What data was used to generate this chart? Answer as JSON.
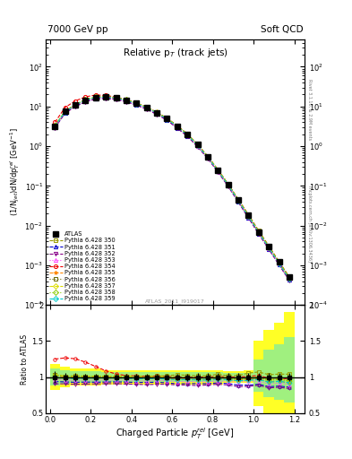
{
  "title_left": "7000 GeV pp",
  "title_right": "Soft QCD",
  "plot_title": "Relative p$_{T}$ (track jets)",
  "xlabel": "Charged Particle $p^{rel}_{T}$ [GeV]",
  "ylabel_top": "(1/N$_{jet}$)dN/dp$^{rel}_{T}$ [GeV$^{-1}$]",
  "ylabel_bottom": "Ratio to ATLAS",
  "right_label_top": "Rivet 3.1.10, ≥ 2.9M events",
  "right_label_bottom": "mcplots.cern.ch [arXiv:1306.3436]",
  "watermark": "ATLAS_2011_I919017",
  "x_data": [
    0.025,
    0.075,
    0.125,
    0.175,
    0.225,
    0.275,
    0.325,
    0.375,
    0.425,
    0.475,
    0.525,
    0.575,
    0.625,
    0.675,
    0.725,
    0.775,
    0.825,
    0.875,
    0.925,
    0.975,
    1.025,
    1.075,
    1.125,
    1.175
  ],
  "atlas_y": [
    3.2,
    7.5,
    11.0,
    14.5,
    17.0,
    17.5,
    16.5,
    14.5,
    12.0,
    9.5,
    7.0,
    5.0,
    3.2,
    2.0,
    1.1,
    0.55,
    0.25,
    0.11,
    0.045,
    0.018,
    0.007,
    0.003,
    0.0012,
    0.0005
  ],
  "atlas_yerr": [
    0.25,
    0.4,
    0.6,
    0.7,
    0.8,
    0.8,
    0.75,
    0.65,
    0.55,
    0.4,
    0.3,
    0.22,
    0.15,
    0.1,
    0.06,
    0.03,
    0.014,
    0.006,
    0.0025,
    0.001,
    0.0004,
    0.00018,
    7e-05,
    3e-05
  ],
  "pythia_350_y": [
    3.3,
    7.6,
    11.2,
    14.7,
    17.2,
    17.7,
    16.7,
    14.7,
    12.1,
    9.6,
    7.1,
    5.1,
    3.3,
    2.05,
    1.12,
    0.56,
    0.26,
    0.112,
    0.046,
    0.019,
    0.0075,
    0.0031,
    0.00125,
    0.00052
  ],
  "pythia_351_y": [
    3.0,
    7.0,
    10.2,
    13.5,
    15.8,
    16.3,
    15.4,
    13.5,
    11.1,
    8.8,
    6.5,
    4.6,
    2.9,
    1.82,
    1.0,
    0.5,
    0.23,
    0.1,
    0.04,
    0.016,
    0.0063,
    0.0026,
    0.00105,
    0.00043
  ],
  "pythia_352_y": [
    2.9,
    6.8,
    9.9,
    13.1,
    15.4,
    15.9,
    15.0,
    13.1,
    10.8,
    8.5,
    6.3,
    4.5,
    2.85,
    1.78,
    0.97,
    0.49,
    0.225,
    0.098,
    0.039,
    0.0157,
    0.0062,
    0.00255,
    0.00103,
    0.00042
  ],
  "pythia_353_y": [
    3.1,
    7.2,
    10.5,
    13.9,
    16.3,
    16.8,
    15.8,
    13.9,
    11.4,
    9.0,
    6.7,
    4.75,
    3.0,
    1.88,
    1.03,
    0.515,
    0.237,
    0.103,
    0.042,
    0.017,
    0.0066,
    0.00272,
    0.0011,
    0.00045
  ],
  "pythia_354_y": [
    4.0,
    9.5,
    13.8,
    17.5,
    19.5,
    19.0,
    17.2,
    14.8,
    12.2,
    9.6,
    7.1,
    5.05,
    3.2,
    2.0,
    1.1,
    0.55,
    0.253,
    0.11,
    0.045,
    0.0182,
    0.00715,
    0.00295,
    0.00119,
    0.000485
  ],
  "pythia_355_y": [
    3.2,
    7.5,
    10.9,
    14.4,
    16.9,
    17.4,
    16.4,
    14.4,
    11.8,
    9.35,
    6.9,
    4.9,
    3.1,
    1.94,
    1.06,
    0.53,
    0.244,
    0.106,
    0.043,
    0.0174,
    0.0068,
    0.0028,
    0.00113,
    0.00046
  ],
  "pythia_356_y": [
    3.3,
    7.6,
    11.1,
    14.7,
    17.2,
    17.7,
    16.7,
    14.7,
    12.1,
    9.55,
    7.07,
    5.02,
    3.18,
    1.99,
    1.09,
    0.545,
    0.251,
    0.109,
    0.044,
    0.0178,
    0.007,
    0.00289,
    0.00117,
    0.000475
  ],
  "pythia_357_y": [
    3.3,
    7.6,
    11.1,
    14.7,
    17.2,
    17.7,
    16.7,
    14.7,
    12.1,
    9.55,
    7.07,
    5.02,
    3.18,
    1.99,
    1.09,
    0.545,
    0.251,
    0.109,
    0.044,
    0.0178,
    0.007,
    0.00289,
    0.00117,
    0.000475
  ],
  "pythia_358_y": [
    3.25,
    7.55,
    11.05,
    14.6,
    17.1,
    17.6,
    16.6,
    14.6,
    12.0,
    9.5,
    7.02,
    4.99,
    3.16,
    1.98,
    1.085,
    0.542,
    0.249,
    0.108,
    0.0437,
    0.0176,
    0.00693,
    0.00286,
    0.00116,
    0.000472
  ],
  "pythia_359_y": [
    3.2,
    7.4,
    10.8,
    14.3,
    16.8,
    17.3,
    16.3,
    14.3,
    11.7,
    9.3,
    6.85,
    4.87,
    3.08,
    1.93,
    1.057,
    0.528,
    0.243,
    0.106,
    0.0427,
    0.0172,
    0.00677,
    0.00279,
    0.00113,
    0.000461
  ],
  "colors": {
    "atlas": "#000000",
    "p350": "#999900",
    "p351": "#0000cc",
    "p352": "#880088",
    "p353": "#ff44ff",
    "p354": "#ee0000",
    "p355": "#ff8800",
    "p356": "#666600",
    "p357": "#dddd00",
    "p358": "#88cc00",
    "p359": "#00cccc"
  },
  "band_yellow_lo": [
    0.82,
    0.86,
    0.88,
    0.88,
    0.88,
    0.9,
    0.9,
    0.9,
    0.9,
    0.9,
    0.9,
    0.9,
    0.9,
    0.9,
    0.9,
    0.9,
    0.9,
    0.92,
    0.92,
    0.92,
    0.6,
    0.5,
    0.45,
    0.45
  ],
  "band_yellow_hi": [
    1.18,
    1.14,
    1.12,
    1.12,
    1.12,
    1.1,
    1.1,
    1.1,
    1.1,
    1.1,
    1.1,
    1.1,
    1.1,
    1.1,
    1.1,
    1.1,
    1.1,
    1.08,
    1.08,
    1.1,
    1.5,
    1.65,
    1.75,
    1.9
  ],
  "band_green_lo": [
    0.88,
    0.91,
    0.92,
    0.92,
    0.92,
    0.93,
    0.93,
    0.93,
    0.93,
    0.93,
    0.93,
    0.93,
    0.93,
    0.93,
    0.93,
    0.93,
    0.93,
    0.94,
    0.94,
    0.94,
    0.8,
    0.72,
    0.68,
    0.65
  ],
  "band_green_hi": [
    1.12,
    1.09,
    1.08,
    1.08,
    1.08,
    1.07,
    1.07,
    1.07,
    1.07,
    1.07,
    1.07,
    1.07,
    1.07,
    1.07,
    1.07,
    1.07,
    1.07,
    1.06,
    1.06,
    1.06,
    1.25,
    1.38,
    1.45,
    1.55
  ]
}
